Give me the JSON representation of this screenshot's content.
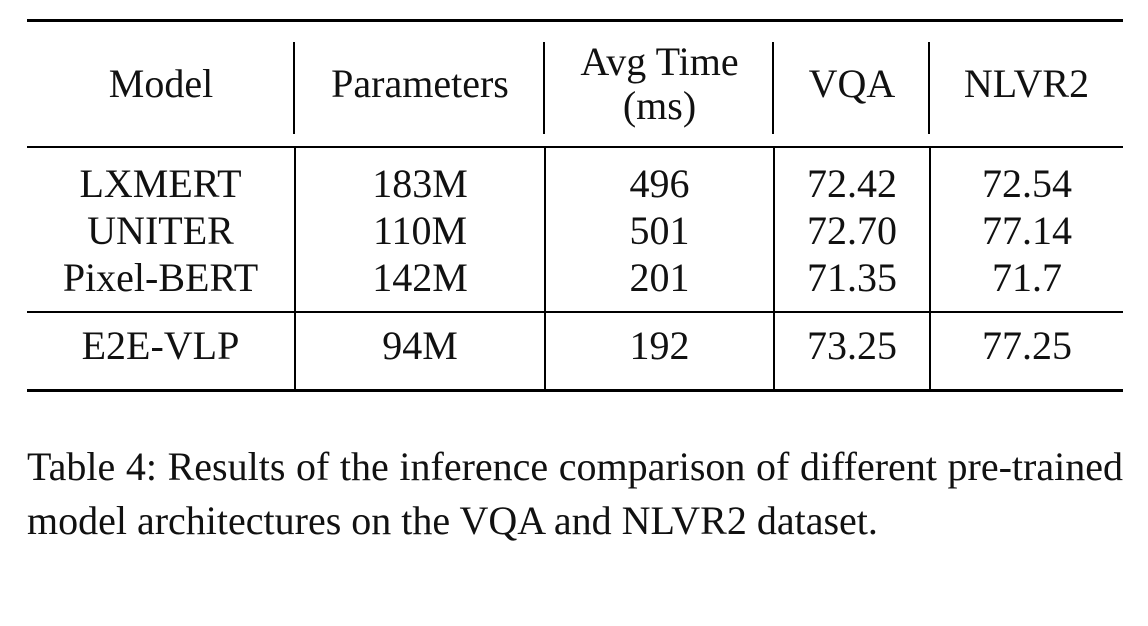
{
  "table": {
    "headers": [
      {
        "line1": "Model",
        "line2": ""
      },
      {
        "line1": "Parameters",
        "line2": ""
      },
      {
        "line1": "Avg Time",
        "line2": "(ms)"
      },
      {
        "line1": "VQA",
        "line2": ""
      },
      {
        "line1": "NLVR2",
        "line2": ""
      }
    ],
    "groups": [
      {
        "rows": [
          [
            "LXMERT",
            "183M",
            "496",
            "72.42",
            "72.54"
          ],
          [
            "UNITER",
            "110M",
            "501",
            "72.70",
            "77.14"
          ],
          [
            "Pixel-BERT",
            "142M",
            "201",
            "71.35",
            "71.7"
          ]
        ]
      },
      {
        "rows": [
          [
            "E2E-VLP",
            "94M",
            "192",
            "73.25",
            "77.25"
          ]
        ]
      }
    ]
  },
  "caption": {
    "text": "Table 4: Results of the inference comparison of different pre-trained model architectures on the VQA and NLVR2 dataset."
  }
}
